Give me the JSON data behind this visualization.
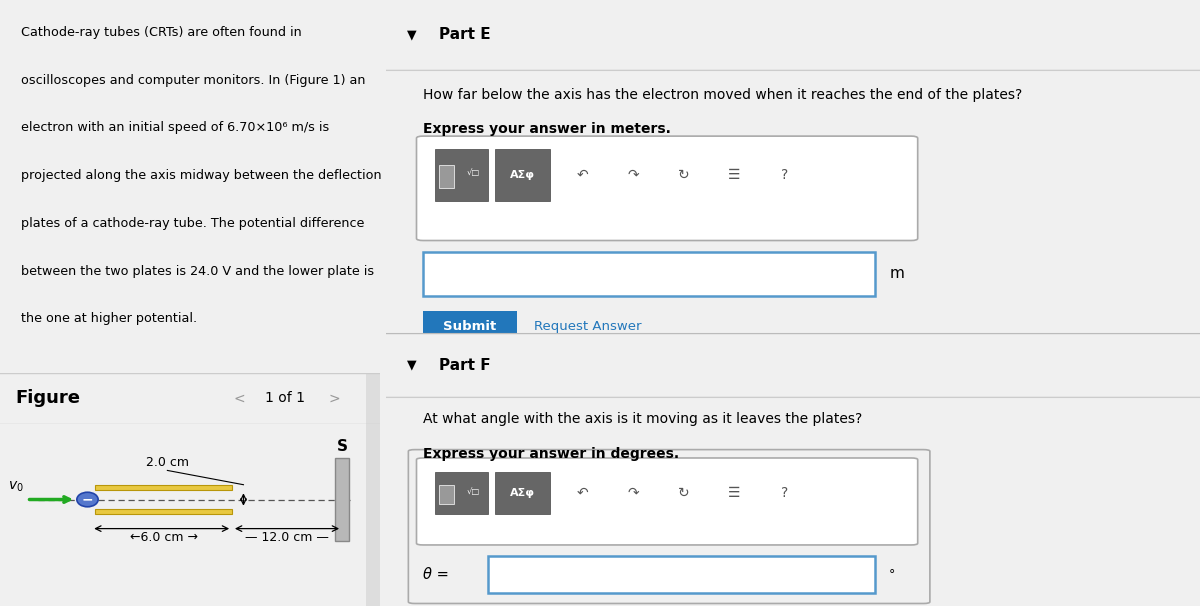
{
  "bg_color": "#f0f0f0",
  "left_panel_bg": "#dce8f5",
  "figure_area_bg": "#ffffff",
  "right_panel_bg": "#f5f5f5",
  "right_content_bg": "#ffffff",
  "part_header_bg": "#e8e8e8",
  "figure_label": "Figure",
  "nav_text": "1 of 1",
  "part_e_header": "Part E",
  "part_e_question": "How far below the axis has the electron moved when it reaches the end of the plates?",
  "part_e_bold": "Express your answer in meters.",
  "part_e_unit": "m",
  "submit_text": "Submit",
  "request_answer_text": "Request Answer",
  "part_f_header": "Part F",
  "part_f_question": "At what angle with the axis is it moving as it leaves the plates?",
  "part_f_bold": "Express your answer in degrees.",
  "part_f_unit": "°",
  "theta_label": "θ =",
  "plate_length_label": "2.0 cm",
  "dist1_label": "6.0 cm",
  "dist2_label": "12.0 cm",
  "screen_label": "S",
  "v0_label": "$v_0$",
  "submit_bg": "#2277bb",
  "separator_color": "#cccccc",
  "toolbar_border": "#aaaaaa",
  "input_border_color": "#5599cc",
  "text_lines": [
    "Cathode-ray tubes (CRTs) are often found in",
    "oscilloscopes and computer monitors. In (Figure 1) an",
    "electron with an initial speed of 6.70×10⁶ m/s is",
    "projected along the axis midway between the deflection",
    "plates of a cathode-ray tube. The potential difference",
    "between the two plates is 24.0 V and the lower plate is",
    "the one at higher potential."
  ]
}
